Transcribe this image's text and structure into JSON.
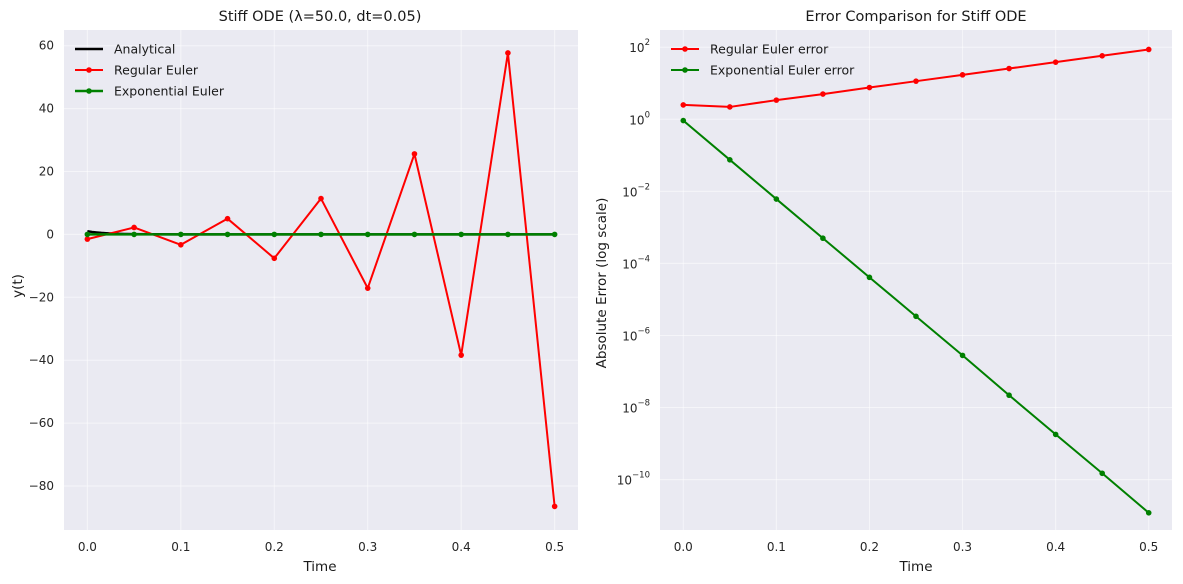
{
  "chart_data": [
    {
      "type": "line",
      "title": "Stiff ODE (λ=50.0, dt=0.05)",
      "xlabel": "Time",
      "ylabel": "y(t)",
      "xlim": [
        -0.025,
        0.525
      ],
      "ylim": [
        -94,
        65
      ],
      "xticks": [
        0.0,
        0.1,
        0.2,
        0.3,
        0.4,
        0.5
      ],
      "xtick_labels": [
        "0.0",
        "0.1",
        "0.2",
        "0.3",
        "0.4",
        "0.5"
      ],
      "yticks": [
        60,
        40,
        20,
        0,
        -20,
        -40,
        -60,
        -80
      ],
      "ytick_labels": [
        "60",
        "40",
        "20",
        "0",
        "−20",
        "−40",
        "−60",
        "−80"
      ],
      "grid": true,
      "legend_position": "top-left",
      "series": [
        {
          "name": "Analytical",
          "color": "#000000",
          "markers": false,
          "width": 2.5,
          "x": [
            0.0,
            0.005,
            0.01,
            0.015,
            0.02,
            0.03,
            0.04,
            0.05,
            0.07,
            0.1,
            0.15,
            0.2,
            0.25,
            0.3,
            0.35,
            0.4,
            0.45,
            0.5
          ],
          "y": [
            1.0,
            0.78,
            0.61,
            0.47,
            0.37,
            0.22,
            0.14,
            0.08,
            0.03,
            0.007,
            0.0006,
            0.0,
            0.0,
            0.0,
            0.0,
            0.0,
            0.0,
            0.0
          ]
        },
        {
          "name": "Regular Euler",
          "color": "#ff0000",
          "markers": true,
          "width": 2,
          "x": [
            0.0,
            0.05,
            0.1,
            0.15,
            0.2,
            0.25,
            0.3,
            0.35,
            0.4,
            0.45,
            0.5
          ],
          "y": [
            -1.5,
            2.2,
            -3.3,
            5.0,
            -7.6,
            11.4,
            -17.1,
            25.6,
            -38.4,
            57.7,
            -86.5
          ]
        },
        {
          "name": "Exponential Euler",
          "color": "#008000",
          "markers": true,
          "width": 2.5,
          "x": [
            0.0,
            0.05,
            0.1,
            0.15,
            0.2,
            0.25,
            0.3,
            0.35,
            0.4,
            0.45,
            0.5
          ],
          "y": [
            0.0,
            0.0,
            0.0,
            0.0,
            0.0,
            0.0,
            0.0,
            0.0,
            0.0,
            0.0,
            0.0
          ]
        }
      ]
    },
    {
      "type": "line",
      "title": "Error Comparison for Stiff ODE",
      "xlabel": "Time",
      "ylabel": "Absolute Error (log scale)",
      "yscale": "log",
      "xlim": [
        -0.025,
        0.525
      ],
      "ylim": [
        4e-12,
        300
      ],
      "xticks": [
        0.0,
        0.1,
        0.2,
        0.3,
        0.4,
        0.5
      ],
      "xtick_labels": [
        "0.0",
        "0.1",
        "0.2",
        "0.3",
        "0.4",
        "0.5"
      ],
      "yticks": [
        100,
        1,
        0.01,
        0.0001,
        1e-06,
        1e-08,
        1e-10
      ],
      "ytick_labels": [
        {
          "base": "10",
          "exp": "2"
        },
        {
          "base": "10",
          "exp": "0"
        },
        {
          "base": "10",
          "exp": "−2"
        },
        {
          "base": "10",
          "exp": "−4"
        },
        {
          "base": "10",
          "exp": "−6"
        },
        {
          "base": "10",
          "exp": "−8"
        },
        {
          "base": "10",
          "exp": "−10"
        }
      ],
      "grid": true,
      "legend_position": "top-left",
      "series": [
        {
          "name": "Regular Euler error",
          "color": "#ff0000",
          "markers": true,
          "width": 2,
          "x": [
            0.0,
            0.05,
            0.1,
            0.15,
            0.2,
            0.25,
            0.3,
            0.35,
            0.4,
            0.45,
            0.5
          ],
          "y": [
            2.5,
            2.2,
            3.4,
            5.0,
            7.6,
            11.4,
            17.1,
            25.6,
            38.4,
            57.7,
            86.5
          ]
        },
        {
          "name": "Exponential Euler error",
          "color": "#008000",
          "markers": true,
          "width": 2,
          "x": [
            0.0,
            0.05,
            0.1,
            0.15,
            0.2,
            0.25,
            0.3,
            0.35,
            0.4,
            0.45,
            0.5
          ],
          "y": [
            0.92,
            0.075,
            0.0061,
            0.0005,
            4.1e-05,
            3.4e-06,
            2.8e-07,
            2.2e-08,
            1.8e-09,
            1.5e-10,
            1.2e-11
          ]
        }
      ]
    }
  ]
}
